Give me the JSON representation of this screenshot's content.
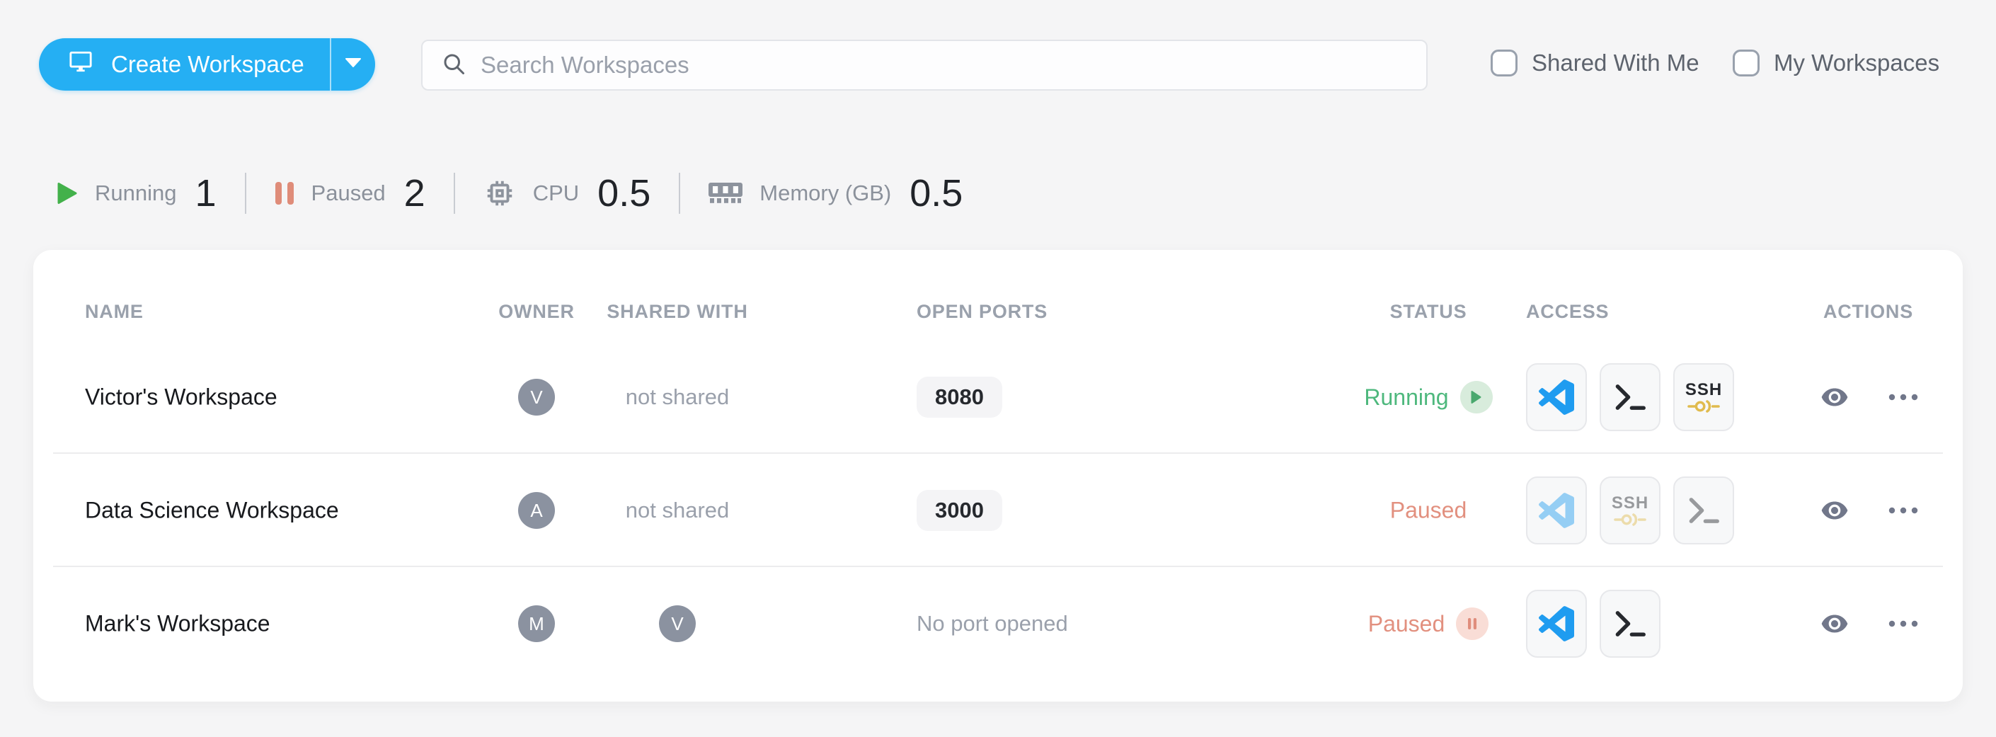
{
  "toolbar": {
    "create_button_label": "Create Workspace",
    "search_placeholder": "Search Workspaces",
    "filters": [
      {
        "label": "Shared With Me",
        "checked": false
      },
      {
        "label": "My Workspaces",
        "checked": false
      }
    ]
  },
  "stats": [
    {
      "icon": "play-icon",
      "label": "Running",
      "value": "1"
    },
    {
      "icon": "pause-icon",
      "label": "Paused",
      "value": "2"
    },
    {
      "icon": "cpu-icon",
      "label": "CPU",
      "value": "0.5"
    },
    {
      "icon": "memory-icon",
      "label": "Memory (GB)",
      "value": "0.5"
    }
  ],
  "labels": {
    "ssh": "SSH"
  },
  "table": {
    "headers": [
      "NAME",
      "OWNER",
      "SHARED WITH",
      "OPEN PORTS",
      "STATUS",
      "ACCESS",
      "ACTIONS"
    ],
    "rows": [
      {
        "name": "Victor's Workspace",
        "owner_initial": "V",
        "shared_with": {
          "type": "text",
          "value": "not shared"
        },
        "open_ports": {
          "type": "badge",
          "value": "8080"
        },
        "status": {
          "label": "Running",
          "kind": "running",
          "badge": "running-badge-icon"
        },
        "access": [
          "vscode-icon",
          "terminal-icon",
          "ssh-icon"
        ],
        "access_disabled": false,
        "actions": [
          "eye-icon",
          "more-icon"
        ]
      },
      {
        "name": "Data Science Workspace",
        "owner_initial": "A",
        "shared_with": {
          "type": "text",
          "value": "not shared"
        },
        "open_ports": {
          "type": "badge",
          "value": "3000"
        },
        "status": {
          "label": "Paused",
          "kind": "paused",
          "badge": null
        },
        "access": [
          "vscode-icon",
          "ssh-icon",
          "terminal-icon"
        ],
        "access_disabled": true,
        "actions": [
          "eye-icon",
          "more-icon"
        ]
      },
      {
        "name": "Mark's Workspace",
        "owner_initial": "M",
        "shared_with": {
          "type": "avatar",
          "value": "V"
        },
        "open_ports": {
          "type": "text",
          "value": "No port opened"
        },
        "status": {
          "label": "Paused",
          "kind": "paused",
          "badge": "paused-badge-icon"
        },
        "access": [
          "vscode-icon",
          "terminal-icon"
        ],
        "access_disabled": false,
        "actions": [
          "eye-icon",
          "more-icon"
        ]
      }
    ]
  },
  "colors": {
    "accent_blue": "#25aff3",
    "running_green": "#4eb87d",
    "paused_salmon": "#e2907f",
    "ssh_gold": "#e0bb4e",
    "vscode_blue": "#1f9cf0",
    "card_bg": "#ffffff",
    "page_bg": "#f5f5f6"
  }
}
